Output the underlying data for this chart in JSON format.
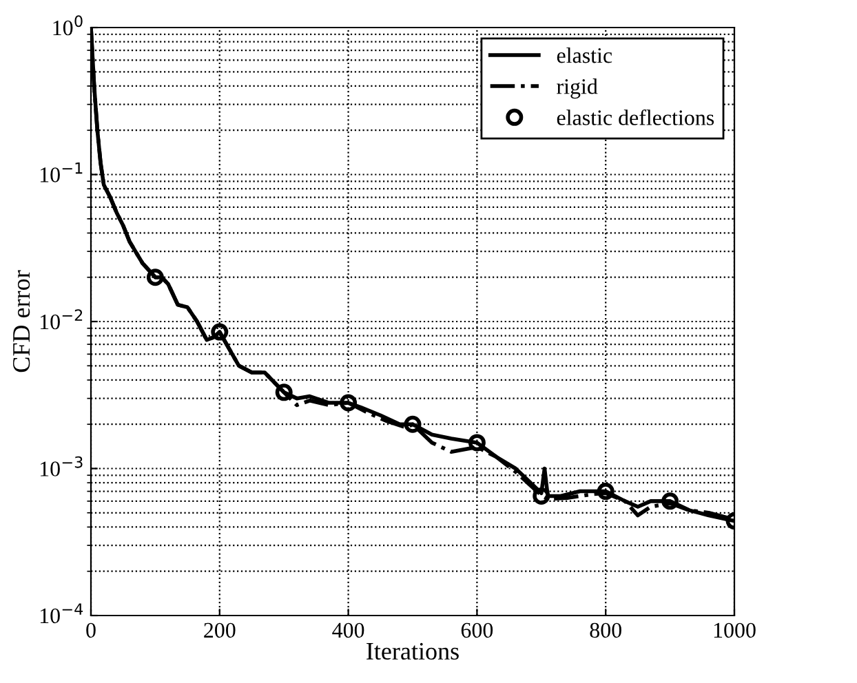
{
  "chart_data": {
    "type": "line",
    "xlabel": "Iterations",
    "ylabel": "CFD error",
    "log": "y",
    "grid": true,
    "legend": "top right",
    "xlim": [
      0,
      1000
    ],
    "xticks": [
      0,
      200,
      400,
      600,
      800,
      1000
    ],
    "ylim": [
      0.0001,
      1
    ],
    "yticks": [
      {
        "value": 0.0001,
        "label": "10$^{−4}$"
      },
      {
        "value": 0.001,
        "label": "10$^{−3}$"
      },
      {
        "value": 0.01,
        "label": "10$^{−2}$"
      },
      {
        "value": 0.1,
        "label": "10$^{−1}$"
      },
      {
        "value": 1,
        "label": "10$^{0}$"
      }
    ],
    "series": [
      {
        "name": "elastic",
        "color": "#000000",
        "line_style": "solid",
        "marker": "none",
        "x": [
          0,
          5,
          10,
          15,
          20,
          30,
          40,
          50,
          60,
          80,
          100,
          110,
          120,
          135,
          150,
          165,
          180,
          190,
          200,
          215,
          230,
          250,
          270,
          300,
          320,
          340,
          370,
          400,
          420,
          450,
          480,
          500,
          530,
          560,
          600,
          630,
          660,
          690,
          700,
          705,
          710,
          730,
          760,
          800,
          830,
          850,
          870,
          900,
          930,
          960,
          1000
        ],
        "values": [
          1.0,
          0.4,
          0.2,
          0.12,
          0.085,
          0.07,
          0.055,
          0.045,
          0.035,
          0.025,
          0.02,
          0.02,
          0.018,
          0.013,
          0.0125,
          0.01,
          0.0075,
          0.0078,
          0.0085,
          0.0065,
          0.005,
          0.0045,
          0.0045,
          0.0033,
          0.003,
          0.0031,
          0.0028,
          0.0028,
          0.0026,
          0.0023,
          0.002,
          0.002,
          0.0017,
          0.0016,
          0.0015,
          0.0012,
          0.001,
          0.00075,
          0.00068,
          0.001,
          0.00065,
          0.00065,
          0.0007,
          0.0007,
          0.0006,
          0.00055,
          0.0006,
          0.0006,
          0.00052,
          0.00048,
          0.00044
        ]
      },
      {
        "name": "rigid",
        "color": "#000000",
        "line_style": "dashdot",
        "marker": "none",
        "x": [
          0,
          5,
          10,
          15,
          20,
          30,
          40,
          50,
          60,
          80,
          100,
          110,
          120,
          135,
          150,
          165,
          180,
          190,
          200,
          215,
          230,
          250,
          270,
          300,
          320,
          340,
          370,
          400,
          430,
          460,
          490,
          500,
          530,
          560,
          600,
          630,
          660,
          690,
          700,
          710,
          740,
          780,
          800,
          830,
          850,
          870,
          900,
          930,
          960,
          1000
        ],
        "values": [
          1.0,
          0.4,
          0.2,
          0.12,
          0.085,
          0.07,
          0.055,
          0.045,
          0.035,
          0.025,
          0.02,
          0.02,
          0.018,
          0.013,
          0.0125,
          0.01,
          0.0075,
          0.0078,
          0.0085,
          0.0065,
          0.005,
          0.0045,
          0.0045,
          0.0033,
          0.0027,
          0.0029,
          0.0027,
          0.0028,
          0.0024,
          0.0021,
          0.0019,
          0.002,
          0.0015,
          0.0013,
          0.0014,
          0.0012,
          0.00095,
          0.00072,
          0.00066,
          0.00062,
          0.00063,
          0.00067,
          0.00068,
          0.0006,
          0.00048,
          0.00055,
          0.00058,
          0.00052,
          0.0005,
          0.00045
        ]
      },
      {
        "name": "elastic deflections",
        "type": "scatter",
        "color": "#000000",
        "marker": "circle",
        "x": [
          100,
          200,
          300,
          400,
          500,
          600,
          700,
          800,
          900,
          1000
        ],
        "values": [
          0.02,
          0.0085,
          0.0033,
          0.0028,
          0.002,
          0.0015,
          0.00065,
          0.0007,
          0.0006,
          0.00044
        ]
      }
    ]
  }
}
